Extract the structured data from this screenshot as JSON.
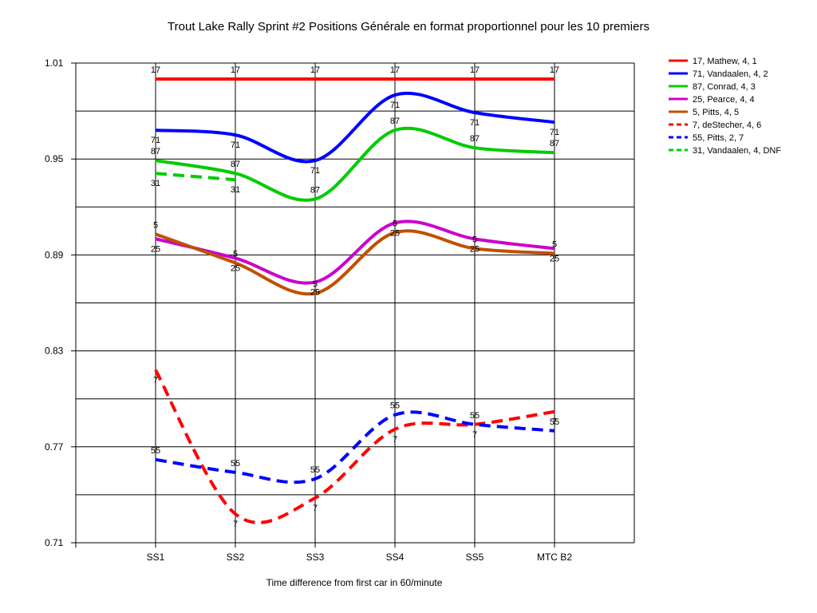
{
  "chart_data": {
    "type": "line",
    "title": "Trout Lake Rally Sprint #2  Positions Générale en format proportionnel pour les 10 premiers",
    "xlabel": "Time difference from first car in 60/minute",
    "ylabel": "",
    "ylim": [
      0.71,
      1.01
    ],
    "yticks": [
      "1.01",
      "0.95",
      "0.89",
      "0.83",
      "0.77",
      "0.71"
    ],
    "categories": [
      "SS1",
      "SS2",
      "SS3",
      "SS4",
      "SS5",
      "MTC B2"
    ],
    "grid": true,
    "legend_position": "right",
    "series": [
      {
        "name": "17, Mathew, 4, 1",
        "label": "17",
        "color": "#ff0000",
        "dashed": false,
        "values": [
          1.0,
          1.0,
          1.0,
          1.0,
          1.0,
          1.0
        ]
      },
      {
        "name": "71, Vandaalen, 4, 2",
        "label": "71",
        "color": "#0000ff",
        "dashed": false,
        "values": [
          0.968,
          0.965,
          0.949,
          0.99,
          0.979,
          0.973
        ]
      },
      {
        "name": "87, Conrad, 4, 3",
        "label": "87",
        "color": "#00cc00",
        "dashed": false,
        "values": [
          0.949,
          0.941,
          0.925,
          0.968,
          0.957,
          0.954
        ]
      },
      {
        "name": "25, Pearce, 4, 4",
        "label": "25",
        "color": "#cc00cc",
        "dashed": false,
        "values": [
          0.9,
          0.888,
          0.873,
          0.91,
          0.9,
          0.894
        ]
      },
      {
        "name": "5, Pitts, 4, 5",
        "label": "5",
        "color": "#c05000",
        "dashed": false,
        "values": [
          0.903,
          0.885,
          0.866,
          0.904,
          0.894,
          0.891
        ]
      },
      {
        "name": "7, deStecher, 4, 6",
        "label": "7",
        "color": "#ff0000",
        "dashed": true,
        "values": [
          0.818,
          0.728,
          0.738,
          0.781,
          0.784,
          0.792
        ]
      },
      {
        "name": "55, Pitts, 2, 7",
        "label": "55",
        "color": "#0000ff",
        "dashed": true,
        "values": [
          0.762,
          0.754,
          0.75,
          0.79,
          0.784,
          0.78
        ]
      },
      {
        "name": "31, Vandaalen, 4, DNF",
        "label": "31",
        "color": "#00cc00",
        "dashed": true,
        "values": [
          0.941,
          0.937,
          null,
          null,
          null,
          null
        ]
      }
    ]
  }
}
